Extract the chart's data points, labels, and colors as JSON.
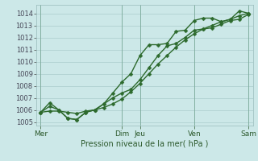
{
  "xlabel": "Pression niveau de la mer( hPa )",
  "background_color": "#cce8e8",
  "grid_color": "#aacccc",
  "line_color": "#2d6a2d",
  "ylim": [
    1004.7,
    1014.7
  ],
  "day_labels": [
    "Mer",
    "Dim",
    "Jeu",
    "Ven",
    "Sam"
  ],
  "day_positions": [
    0,
    9,
    11,
    17,
    23
  ],
  "series": [
    [
      1005.8,
      1005.9,
      1005.9,
      1005.8,
      1005.7,
      1005.9,
      1006.0,
      1006.2,
      1006.5,
      1006.9,
      1007.5,
      1008.2,
      1009.0,
      1009.8,
      1010.5,
      1011.2,
      1011.8,
      1012.3,
      1012.7,
      1013.0,
      1013.3,
      1013.5,
      1013.8,
      1014.0
    ],
    [
      1005.8,
      1006.6,
      1006.0,
      1005.3,
      1005.2,
      1005.8,
      1006.0,
      1006.5,
      1007.0,
      1007.4,
      1007.7,
      1008.5,
      1009.5,
      1010.5,
      1011.3,
      1011.5,
      1012.0,
      1012.6,
      1012.7,
      1012.8,
      1013.1,
      1013.4,
      1013.5,
      1013.9
    ],
    [
      1005.8,
      1006.3,
      1006.0,
      1005.3,
      1005.2,
      1005.8,
      1006.0,
      1006.5,
      1007.4,
      1008.3,
      1009.0,
      1010.5,
      1011.4,
      1011.4,
      1011.5,
      1012.5,
      1012.6,
      1013.4,
      1013.6,
      1013.6,
      1013.3,
      1013.5,
      1014.2,
      1014.0
    ]
  ],
  "yticks": [
    1005,
    1006,
    1007,
    1008,
    1009,
    1010,
    1011,
    1012,
    1013,
    1014
  ],
  "ytick_fontsize": 6,
  "xtick_fontsize": 6.5,
  "xlabel_fontsize": 7,
  "linewidth": 1.0,
  "markersize": 2.5,
  "figsize": [
    3.2,
    2.0
  ],
  "dpi": 100
}
